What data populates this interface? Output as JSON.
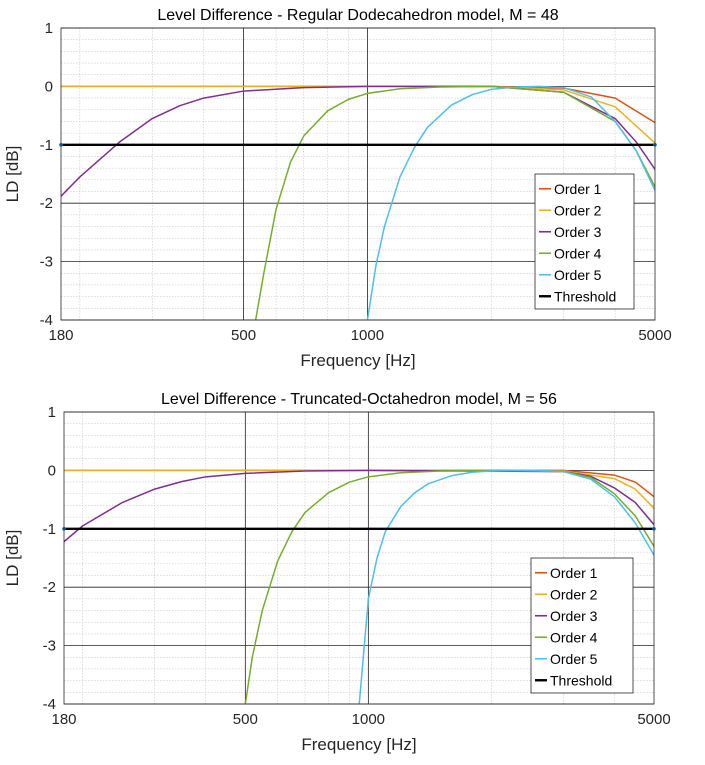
{
  "chart_data": [
    {
      "type": "line",
      "title": "Level Difference - Regular Dodecahedron model, M = 48",
      "xlabel": "Frequency [Hz]",
      "ylabel": "LD [dB]",
      "xscale": "log",
      "xlim": [
        180,
        5000
      ],
      "ylim": [
        -4,
        1
      ],
      "xticks": [
        180,
        500,
        1000,
        5000
      ],
      "yticks": [
        1,
        0,
        -1,
        -2,
        -3,
        -4
      ],
      "grid": "major and minor",
      "legend_position": "bottom-right",
      "series": [
        {
          "name": "Order 1",
          "color": "#d95319",
          "x": [
            180,
            1000,
            2000,
            3000,
            4000,
            5000
          ],
          "y": [
            0,
            0,
            0,
            -0.03,
            -0.2,
            -0.62
          ]
        },
        {
          "name": "Order 2",
          "color": "#edb120",
          "x": [
            180,
            1000,
            2000,
            3000,
            4000,
            5000
          ],
          "y": [
            0,
            0,
            0,
            -0.06,
            -0.35,
            -0.97
          ]
        },
        {
          "name": "Order 3",
          "color": "#7e2f8e",
          "x": [
            180,
            200,
            250,
            300,
            350,
            400,
            500,
            700,
            1000,
            2000,
            3000,
            4000,
            4500,
            5000
          ],
          "y": [
            -1.88,
            -1.55,
            -0.95,
            -0.55,
            -0.33,
            -0.2,
            -0.08,
            -0.02,
            0,
            0,
            -0.1,
            -0.55,
            -0.95,
            -1.42
          ]
        },
        {
          "name": "Order 4",
          "color": "#77ac30",
          "x": [
            535,
            560,
            600,
            650,
            700,
            800,
            900,
            1000,
            1200,
            1500,
            2000,
            3000,
            4000,
            4500,
            5000
          ],
          "y": [
            -4,
            -3.2,
            -2.1,
            -1.3,
            -0.85,
            -0.42,
            -0.22,
            -0.12,
            -0.04,
            -0.01,
            0,
            -0.1,
            -0.6,
            -1.1,
            -1.72
          ]
        },
        {
          "name": "Order 5",
          "color": "#4dbeee",
          "x": [
            1000,
            1050,
            1100,
            1200,
            1300,
            1400,
            1600,
            1800,
            2000,
            2300,
            2600,
            3000,
            3500,
            4000,
            4500,
            5000
          ],
          "y": [
            -4,
            -3.05,
            -2.4,
            -1.55,
            -1.05,
            -0.7,
            -0.32,
            -0.14,
            -0.05,
            -0.01,
            0,
            -0.02,
            -0.18,
            -0.6,
            -1.1,
            -1.78
          ]
        },
        {
          "name": "Threshold",
          "color": "#000000",
          "x": [
            180,
            5000
          ],
          "y": [
            -1,
            -1
          ]
        }
      ]
    },
    {
      "type": "line",
      "title": "Level Difference - Truncated-Octahedron model, M = 56",
      "xlabel": "Frequency [Hz]",
      "ylabel": "LD [dB]",
      "xscale": "log",
      "xlim": [
        180,
        5000
      ],
      "ylim": [
        -4,
        1
      ],
      "xticks": [
        180,
        500,
        1000,
        5000
      ],
      "yticks": [
        1,
        0,
        -1,
        -2,
        -3,
        -4
      ],
      "grid": "major and minor",
      "legend_position": "bottom-right",
      "series": [
        {
          "name": "Order 1",
          "color": "#d95319",
          "x": [
            180,
            1000,
            3000,
            4000,
            4500,
            5000
          ],
          "y": [
            0,
            0,
            0,
            -0.08,
            -0.2,
            -0.45
          ]
        },
        {
          "name": "Order 2",
          "color": "#edb120",
          "x": [
            180,
            1000,
            3000,
            4000,
            4500,
            5000
          ],
          "y": [
            0,
            0,
            -0.01,
            -0.14,
            -0.32,
            -0.65
          ]
        },
        {
          "name": "Order 3",
          "color": "#7e2f8e",
          "x": [
            180,
            200,
            250,
            300,
            350,
            400,
            500,
            700,
            1000,
            3000,
            3500,
            4000,
            4500,
            5000
          ],
          "y": [
            -1.22,
            -0.95,
            -0.55,
            -0.32,
            -0.19,
            -0.11,
            -0.05,
            -0.01,
            0,
            -0.02,
            -0.1,
            -0.3,
            -0.55,
            -0.93
          ]
        },
        {
          "name": "Order 4",
          "color": "#77ac30",
          "x": [
            500,
            520,
            550,
            600,
            650,
            700,
            800,
            900,
            1000,
            1200,
            1500,
            2000,
            3000,
            3500,
            4000,
            4500,
            5000
          ],
          "y": [
            -4,
            -3.2,
            -2.4,
            -1.55,
            -1.05,
            -0.72,
            -0.38,
            -0.2,
            -0.11,
            -0.04,
            -0.01,
            0,
            -0.02,
            -0.12,
            -0.4,
            -0.78,
            -1.3
          ]
        },
        {
          "name": "Order 5",
          "color": "#4dbeee",
          "x": [
            950,
            1000,
            1050,
            1100,
            1200,
            1300,
            1400,
            1600,
            1800,
            2000,
            2300,
            2600,
            3000,
            3500,
            4000,
            4500,
            5000
          ],
          "y": [
            -4,
            -2.2,
            -1.5,
            -1.05,
            -0.62,
            -0.38,
            -0.23,
            -0.09,
            -0.03,
            -0.01,
            0,
            0,
            -0.02,
            -0.15,
            -0.45,
            -0.9,
            -1.45
          ]
        },
        {
          "name": "Threshold",
          "color": "#000000",
          "x": [
            180,
            5000
          ],
          "y": [
            -1,
            -1
          ]
        }
      ]
    }
  ]
}
